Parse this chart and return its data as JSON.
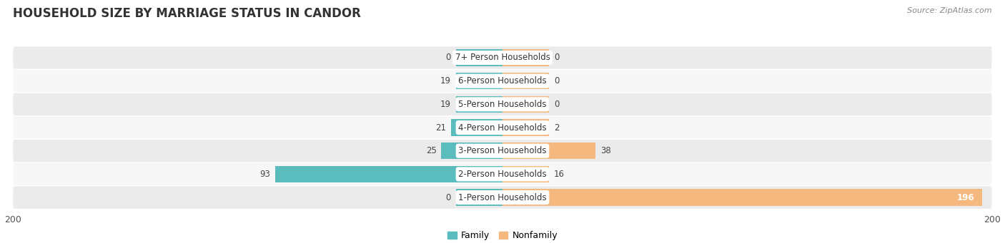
{
  "title": "HOUSEHOLD SIZE BY MARRIAGE STATUS IN CANDOR",
  "source": "Source: ZipAtlas.com",
  "categories": [
    "7+ Person Households",
    "6-Person Households",
    "5-Person Households",
    "4-Person Households",
    "3-Person Households",
    "2-Person Households",
    "1-Person Households"
  ],
  "family_values": [
    0,
    19,
    19,
    21,
    25,
    93,
    0
  ],
  "nonfamily_values": [
    0,
    0,
    0,
    2,
    38,
    16,
    196
  ],
  "family_color": "#5bbcbe",
  "nonfamily_color": "#f5b97f",
  "min_bar_width": 19,
  "xlim": [
    -200,
    200
  ],
  "bar_height": 0.72,
  "bg_color": "#ffffff",
  "row_color_even": "#ebebeb",
  "row_color_odd": "#f7f7f7",
  "title_fontsize": 12,
  "label_fontsize": 8.5,
  "tick_fontsize": 9,
  "source_fontsize": 8,
  "legend_fontsize": 9
}
